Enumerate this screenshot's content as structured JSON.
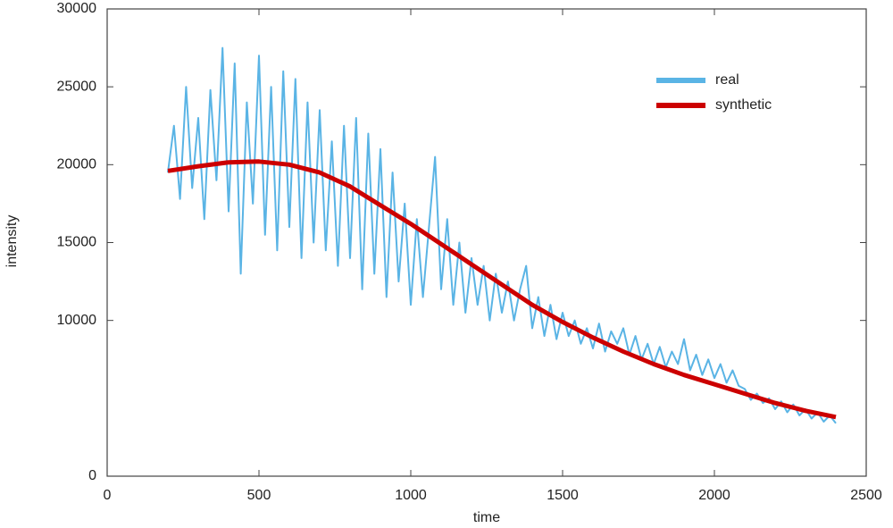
{
  "chart_data": {
    "type": "line",
    "xlabel": "time",
    "ylabel": "intensity",
    "xlim": [
      0,
      2500
    ],
    "xticks": [
      0,
      500,
      1000,
      1500,
      2000,
      2500
    ],
    "ylim": [
      0,
      30000
    ],
    "yticks": [
      0,
      10000,
      15000,
      20000,
      25000,
      30000
    ],
    "legend": "upper right",
    "series": [
      {
        "name": "real",
        "color": "#5ab4e5",
        "x": [
          200,
          220,
          240,
          260,
          280,
          300,
          320,
          340,
          360,
          380,
          400,
          420,
          440,
          460,
          480,
          500,
          520,
          540,
          560,
          580,
          600,
          620,
          640,
          660,
          680,
          700,
          720,
          740,
          760,
          780,
          800,
          820,
          840,
          860,
          880,
          900,
          920,
          940,
          960,
          980,
          1000,
          1020,
          1040,
          1060,
          1080,
          1100,
          1120,
          1140,
          1160,
          1180,
          1200,
          1220,
          1240,
          1260,
          1280,
          1300,
          1320,
          1340,
          1360,
          1380,
          1400,
          1420,
          1440,
          1460,
          1480,
          1500,
          1520,
          1540,
          1560,
          1580,
          1600,
          1620,
          1640,
          1660,
          1680,
          1700,
          1720,
          1740,
          1760,
          1780,
          1800,
          1820,
          1840,
          1860,
          1880,
          1900,
          1920,
          1940,
          1960,
          1980,
          2000,
          2020,
          2040,
          2060,
          2080,
          2100,
          2120,
          2140,
          2160,
          2180,
          2200,
          2220,
          2240,
          2260,
          2280,
          2300,
          2320,
          2340,
          2360,
          2380,
          2400
        ],
        "values": [
          19500,
          22500,
          17800,
          25000,
          18500,
          23000,
          16500,
          24800,
          19000,
          27500,
          17000,
          26500,
          13000,
          24000,
          17500,
          27000,
          15500,
          25000,
          14500,
          26000,
          16000,
          25500,
          14000,
          24000,
          15000,
          23500,
          14500,
          21500,
          13500,
          22500,
          14000,
          23000,
          12000,
          22000,
          13000,
          21000,
          11500,
          19500,
          12500,
          17500,
          11000,
          16500,
          11500,
          16000,
          20500,
          12000,
          16500,
          11000,
          15000,
          10500,
          14000,
          11000,
          13500,
          10000,
          13000,
          10500,
          12500,
          10000,
          12000,
          13500,
          9500,
          11500,
          9000,
          11000,
          8800,
          10500,
          9000,
          10000,
          8500,
          9500,
          8200,
          9800,
          8000,
          9300,
          8500,
          9500,
          7800,
          9000,
          7500,
          8500,
          7200,
          8300,
          7000,
          8000,
          7200,
          8800,
          6800,
          7800,
          6500,
          7500,
          6300,
          7200,
          6000,
          6800,
          5800,
          5600,
          4900,
          5300,
          4700,
          5000,
          4300,
          4800,
          4100,
          4600,
          3900,
          4300,
          3700,
          4100,
          3500,
          3900,
          3400
        ]
      },
      {
        "name": "synthetic",
        "color": "#cc0000",
        "x": [
          200,
          300,
          400,
          500,
          600,
          700,
          800,
          900,
          1000,
          1100,
          1200,
          1300,
          1400,
          1500,
          1600,
          1700,
          1800,
          1900,
          2000,
          2100,
          2200,
          2300,
          2400
        ],
        "values": [
          19600,
          19900,
          20150,
          20200,
          20000,
          19500,
          18600,
          17400,
          16200,
          14900,
          13600,
          12300,
          11000,
          9900,
          8900,
          8000,
          7200,
          6500,
          5900,
          5300,
          4700,
          4200,
          3800
        ]
      }
    ]
  }
}
